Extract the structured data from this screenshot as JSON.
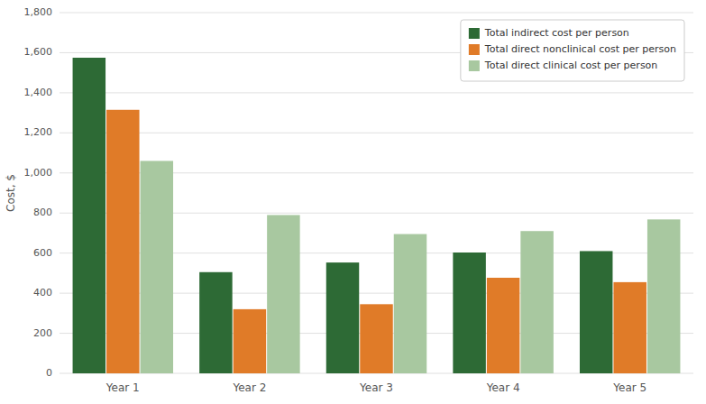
{
  "chart_data": {
    "type": "bar",
    "categories": [
      "Year 1",
      "Year 2",
      "Year 3",
      "Year 4",
      "Year 5"
    ],
    "series": [
      {
        "name": "Total indirect cost per person",
        "color": "#2d6a35",
        "values": [
          1575,
          505,
          553,
          603,
          610
        ]
      },
      {
        "name": "Total direct nonclinical cost per person",
        "color": "#e07b28",
        "values": [
          1315,
          320,
          345,
          477,
          455
        ]
      },
      {
        "name": "Total direct clinical cost per person",
        "color": "#a8c8a0",
        "values": [
          1060,
          790,
          695,
          710,
          768
        ]
      }
    ],
    "ylabel": "Cost, $",
    "ylim": [
      0,
      1800
    ],
    "yticks": [
      0,
      200,
      400,
      600,
      800,
      {
        "value": 1000,
        "label": "1,000"
      },
      {
        "value": 1200,
        "label": "1,200"
      },
      {
        "value": 1400,
        "label": "1,400"
      },
      {
        "value": 1600,
        "label": "1,600"
      },
      {
        "value": 1800,
        "label": "1,800"
      }
    ],
    "grid": true,
    "legend": "upper right"
  }
}
